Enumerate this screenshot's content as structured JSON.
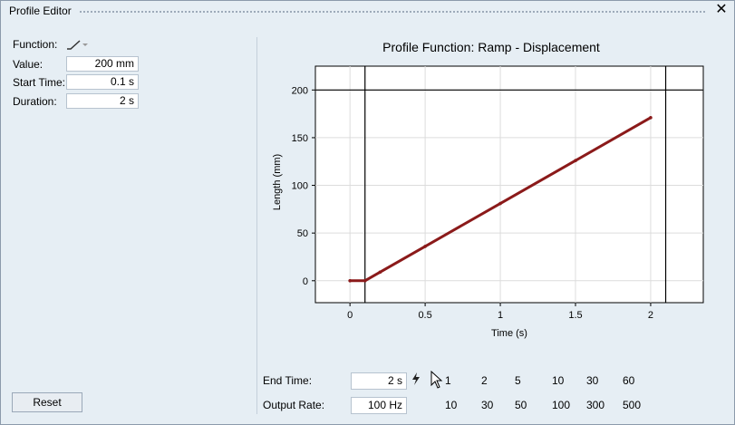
{
  "window": {
    "title": "Profile Editor",
    "close_glyph": "✕"
  },
  "left": {
    "function_label": "Function:",
    "function_icon": "ramp-function-icon",
    "value_label": "Value:",
    "value": "200 mm",
    "start_label": "Start Time:",
    "start": "0.1 s",
    "duration_label": "Duration:",
    "duration": "2 s",
    "reset_label": "Reset"
  },
  "chart_data": {
    "type": "line",
    "title": "Profile Function: Ramp - Displacement",
    "xlabel": "Time (s)",
    "ylabel": "Length (mm)",
    "xlim": [
      -0.23,
      2.35
    ],
    "ylim": [
      -23,
      225
    ],
    "x_ticks": [
      0,
      0.5,
      1,
      1.5,
      2
    ],
    "x_tick_labels": [
      "0",
      "0.5",
      "1",
      "1.5",
      "2"
    ],
    "y_ticks": [
      0,
      50,
      100,
      150,
      200
    ],
    "y_tick_labels": [
      "0",
      "50",
      "100",
      "150",
      "200"
    ],
    "grid": true,
    "reference_lines": {
      "x": [
        0.1,
        2.1
      ],
      "y": [
        200
      ]
    },
    "series": [
      {
        "color": "#8b1a1a",
        "x": [
          0,
          0.1,
          0.2,
          0.5,
          1.0,
          1.5,
          2.0
        ],
        "y": [
          0,
          0,
          9,
          36,
          81,
          126,
          171
        ]
      }
    ]
  },
  "bottom": {
    "end_time_label": "End Time:",
    "end_time": "2 s",
    "end_time_presets": [
      "1",
      "2",
      "5",
      "10",
      "30",
      "60"
    ],
    "output_rate_label": "Output Rate:",
    "output_rate": "100 Hz",
    "output_rate_presets": [
      "10",
      "30",
      "50",
      "100",
      "300",
      "500"
    ],
    "apply_icon": "lightning-bolt-icon"
  }
}
